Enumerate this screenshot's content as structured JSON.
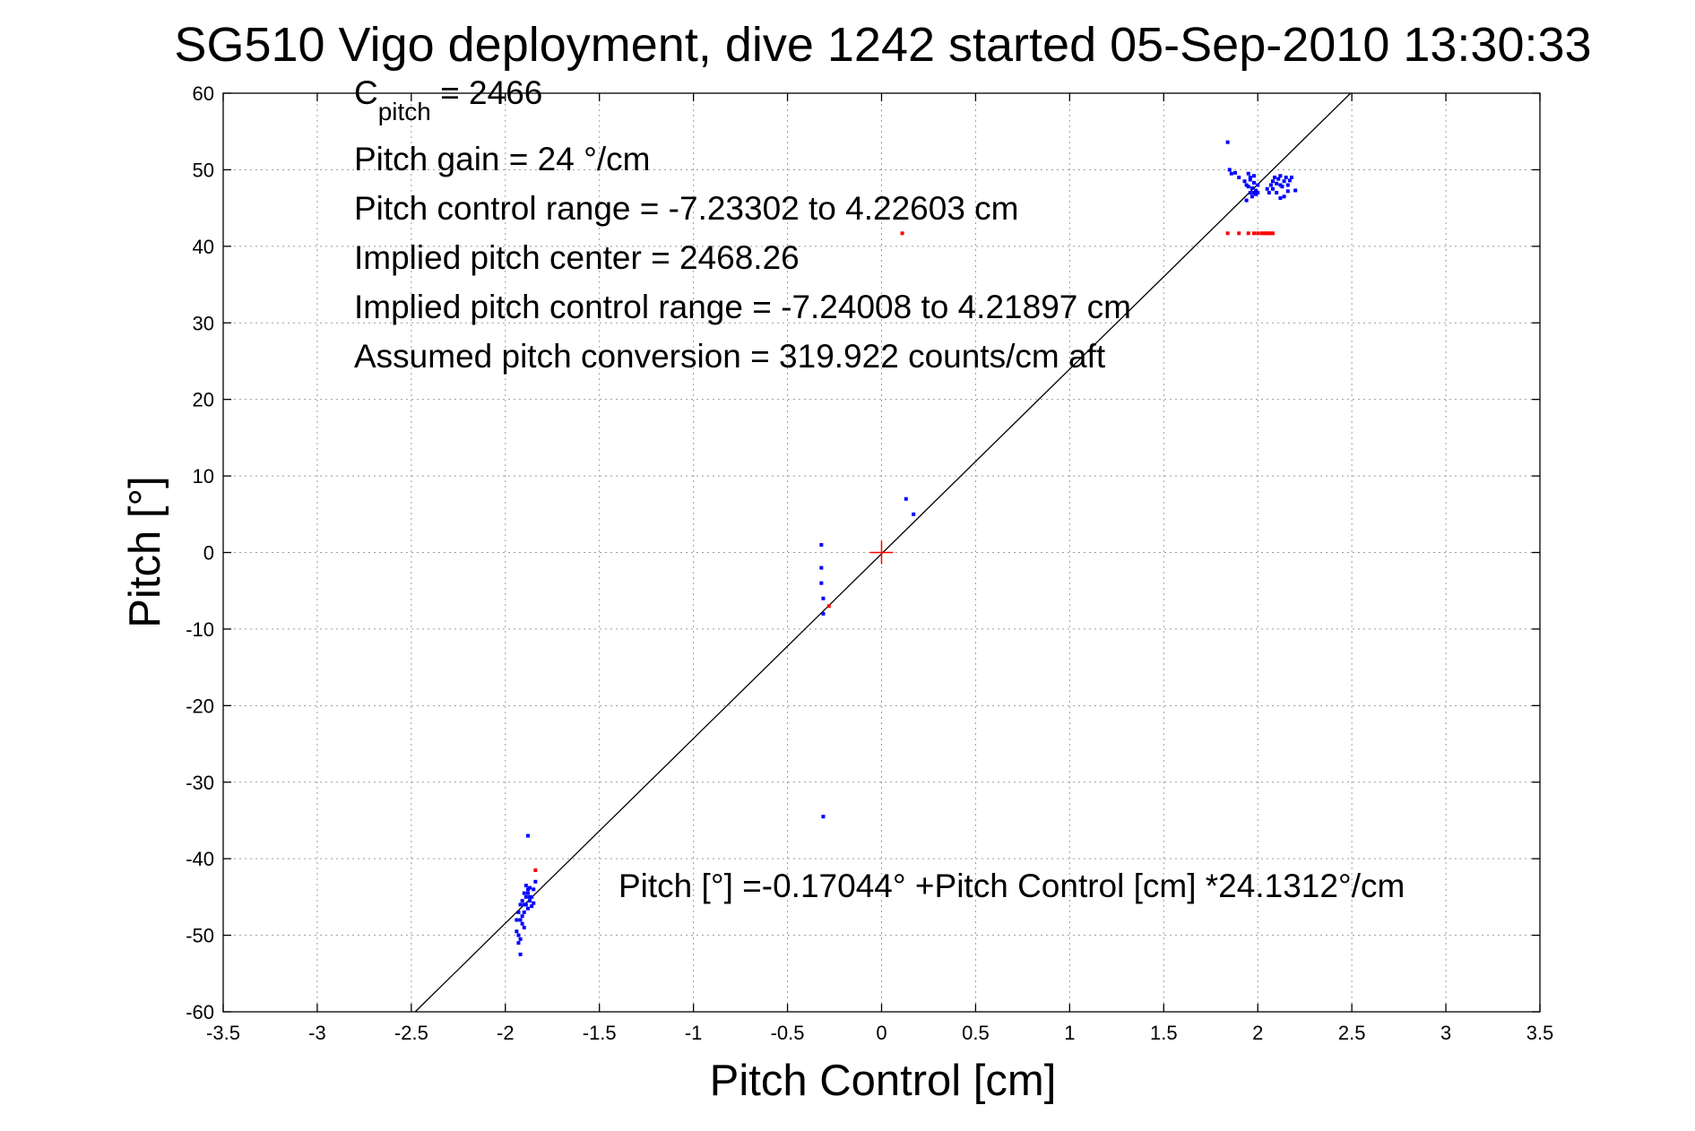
{
  "chart_data": {
    "type": "scatter",
    "title": "SG510 Vigo deployment, dive 1242 started 05-Sep-2010 13:30:33",
    "xlabel": "Pitch Control [cm]",
    "ylabel": "Pitch [°]",
    "xlim": [
      -3.5,
      3.5
    ],
    "ylim": [
      -60,
      60
    ],
    "xticks": [
      -3.5,
      -3,
      -2.5,
      -2,
      -1.5,
      -1,
      -0.5,
      0,
      0.5,
      1,
      1.5,
      2,
      2.5,
      3,
      3.5
    ],
    "xtick_labels": [
      "-3.5",
      "-3",
      "-2.5",
      "-2",
      "-1.5",
      "-1",
      "-0.5",
      "0",
      "0.5",
      "1",
      "1.5",
      "2",
      "2.5",
      "3",
      "3.5"
    ],
    "yticks": [
      -60,
      -50,
      -40,
      -30,
      -20,
      -10,
      0,
      10,
      20,
      30,
      40,
      50,
      60
    ],
    "ytick_labels": [
      "-60",
      "-50",
      "-40",
      "-30",
      "-20",
      "-10",
      "0",
      "10",
      "20",
      "30",
      "40",
      "50",
      "60"
    ],
    "grid": true,
    "annotations": {
      "c_pitch_symbol": "C",
      "c_pitch_subscript": "pitch",
      "c_pitch_value": " = 2466",
      "line2": "Pitch gain = 24 °/cm",
      "line3": "Pitch control range = -7.23302 to 4.22603 cm",
      "line4": "Implied pitch center = 2468.26",
      "line5": "Implied pitch control range = -7.24008 to 4.21897 cm",
      "line6": "Assumed pitch conversion = 319.922 counts/cm aft",
      "fit_equation": "Pitch [°] =-0.17044° +Pitch Control [cm] *24.1312°/cm"
    },
    "fit_line": {
      "intercept": -0.17044,
      "slope": 24.1312,
      "color": "#000000"
    },
    "center_marker": {
      "x": 0,
      "y": 0,
      "color": "#ff0000"
    },
    "series": [
      {
        "color": "#0000ff",
        "x": [
          1.84,
          1.85,
          1.86,
          1.88,
          1.9,
          1.93,
          1.94,
          1.95,
          1.95,
          1.96,
          1.96,
          1.97,
          1.97,
          1.98,
          1.98,
          1.99,
          1.99,
          2.0,
          2.0,
          1.94,
          1.96,
          1.98,
          2.05,
          2.07,
          2.08,
          2.08,
          2.09,
          2.1,
          2.1,
          2.11,
          2.12,
          2.12,
          2.13,
          2.14,
          2.14,
          2.15,
          2.16,
          2.16,
          2.17,
          2.18,
          2.12,
          2.06,
          2.2,
          -1.94,
          -1.94,
          -1.93,
          -1.93,
          -1.92,
          -1.92,
          -1.92,
          -1.91,
          -1.91,
          -1.9,
          -1.9,
          -1.9,
          -1.89,
          -1.89,
          -1.88,
          -1.88,
          -1.88,
          -1.87,
          -1.87,
          -1.86,
          -1.86,
          -1.85,
          -1.85,
          -1.84,
          -1.93,
          -1.92,
          -1.91,
          -1.9,
          -1.89,
          -1.88,
          -1.87,
          -0.32,
          -0.32,
          -0.32,
          -0.31,
          -0.31,
          0.13,
          0.17,
          -0.31
        ],
        "y": [
          53.6,
          50.0,
          49.5,
          49.6,
          49.0,
          48.5,
          48.0,
          47.8,
          49.5,
          47.0,
          48.7,
          46.5,
          47.6,
          47.0,
          48.3,
          46.8,
          47.3,
          47.0,
          48.0,
          46.0,
          49.0,
          49.2,
          47.5,
          48.0,
          48.5,
          47.5,
          49.0,
          48.2,
          47.0,
          48.8,
          48.0,
          49.2,
          47.8,
          48.5,
          46.5,
          49.0,
          48.0,
          47.2,
          48.6,
          49.0,
          46.3,
          47.0,
          47.3,
          -48.0,
          -49.5,
          -47.0,
          -51.0,
          -46.0,
          -50.5,
          -52.5,
          -45.5,
          -48.5,
          -44.5,
          -47.0,
          -49.0,
          -43.5,
          -46.0,
          -37.0,
          -44.5,
          -46.5,
          -45.5,
          -43.8,
          -45.0,
          -46.2,
          -44.0,
          -45.8,
          -43.0,
          -50.0,
          -48.0,
          -47.5,
          -46.0,
          -45.0,
          -44.0,
          -45.0,
          1.0,
          -2.0,
          -4.0,
          -6.0,
          -34.5,
          7.0,
          5.0,
          -8.0
        ]
      },
      {
        "color": "#ff0000",
        "x": [
          1.84,
          1.9,
          1.95,
          1.98,
          2.0,
          2.02,
          2.03,
          2.04,
          2.05,
          2.06,
          2.07,
          2.08,
          0.11,
          -0.28,
          -1.84
        ],
        "y": [
          41.7,
          41.7,
          41.7,
          41.7,
          41.7,
          41.7,
          41.7,
          41.7,
          41.7,
          41.7,
          41.7,
          41.7,
          41.7,
          -7.0,
          -41.5
        ]
      }
    ]
  }
}
